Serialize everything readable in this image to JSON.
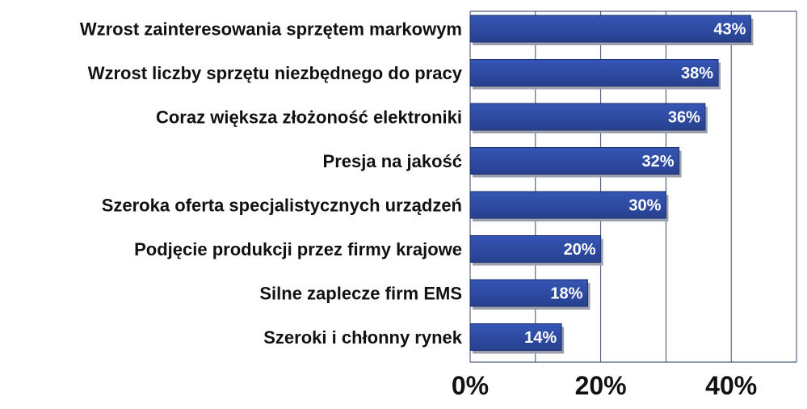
{
  "chart_data": {
    "type": "bar",
    "orientation": "horizontal",
    "categories": [
      "Wzrost zainteresowania sprzętem markowym",
      "Wzrost liczby sprzętu niezbędnego do pracy",
      "Coraz większa złożoność elektroniki",
      "Presja na jakość",
      "Szeroka oferta specjalistycznych urządzeń",
      "Podjęcie produkcji przez firmy krajowe",
      "Silne zaplecze firm EMS",
      "Szeroki i chłonny rynek"
    ],
    "values": [
      43,
      38,
      36,
      32,
      30,
      20,
      18,
      14
    ],
    "data_labels": [
      "43%",
      "38%",
      "36%",
      "32%",
      "30%",
      "20%",
      "18%",
      "14%"
    ],
    "xlim": [
      0,
      50
    ],
    "x_ticks": [
      0,
      20,
      40
    ],
    "x_tick_labels": [
      "0%",
      "20%",
      "40%"
    ],
    "x_gridlines": [
      0,
      10,
      20,
      30,
      40,
      50
    ],
    "title": "",
    "xlabel": "",
    "ylabel": "",
    "grid": true,
    "legend": "none",
    "colors": {
      "bar": "#27408f",
      "bar_light": "#3556b5",
      "bar_shadow": "#9aa0ad",
      "grid": "#3a4a70",
      "plot_border": "#2a3660",
      "label_text": "#111111",
      "value_text": "#ffffff"
    }
  }
}
